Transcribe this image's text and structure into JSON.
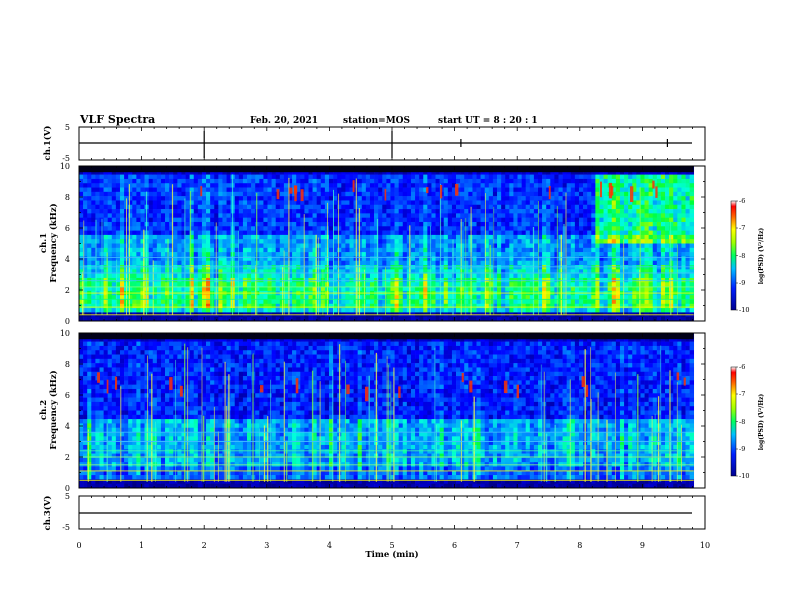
{
  "header": {
    "title": "VLF Spectra",
    "date": "Feb. 20, 2021",
    "station": "station=MOS",
    "start_ut": "start UT =  8 : 20 : 1"
  },
  "chart_data": {
    "type": "heatmap",
    "xlabel": "Time (min)",
    "xlim": [
      0,
      10
    ],
    "x_ticks": [
      "0",
      "1",
      "2",
      "3",
      "4",
      "5",
      "6",
      "7",
      "8",
      "9",
      "10"
    ],
    "panels": [
      {
        "name": "ch.1(V)",
        "kind": "waveform",
        "ylabel": "ch.1(V)",
        "ylim": [
          -5,
          5
        ],
        "y_ticks": [
          "5",
          "-5"
        ],
        "baseline": 0
      },
      {
        "name": "ch.1",
        "kind": "spectrogram",
        "ylabel_1": "ch.1",
        "ylabel_2": "Frequency (kHz)",
        "ylim": [
          0,
          10
        ],
        "y_ticks": [
          "0",
          "2",
          "4",
          "6",
          "8",
          "10"
        ],
        "colorbar": {
          "label": "log(PSD) (V²/Hz)",
          "range": [
            -10,
            -6
          ],
          "ticks": [
            "-6",
            "-7",
            "-8",
            "-9",
            "-10"
          ]
        },
        "data_end_min": 9.82
      },
      {
        "name": "ch.2",
        "kind": "spectrogram",
        "ylabel_1": "ch.2",
        "ylabel_2": "Frequency (kHz)",
        "ylim": [
          0,
          10
        ],
        "y_ticks": [
          "0",
          "2",
          "4",
          "6",
          "8",
          "10"
        ],
        "colorbar": {
          "label": "log(PSD) (V²/Hz)",
          "range": [
            -10,
            -6
          ],
          "ticks": [
            "-6",
            "-7",
            "-8",
            "-9",
            "-10"
          ]
        },
        "data_end_min": 9.82
      },
      {
        "name": "ch.3(V)",
        "kind": "waveform",
        "ylabel": "ch.3(V)",
        "ylim": [
          -5,
          5
        ],
        "y_ticks": [
          "5",
          "-5"
        ],
        "baseline": 0
      }
    ],
    "colormap": [
      "#000080",
      "#0000ff",
      "#00a0ff",
      "#00ffff",
      "#00ff00",
      "#ffff00",
      "#ff8000",
      "#ff0000",
      "#ffffff"
    ]
  }
}
